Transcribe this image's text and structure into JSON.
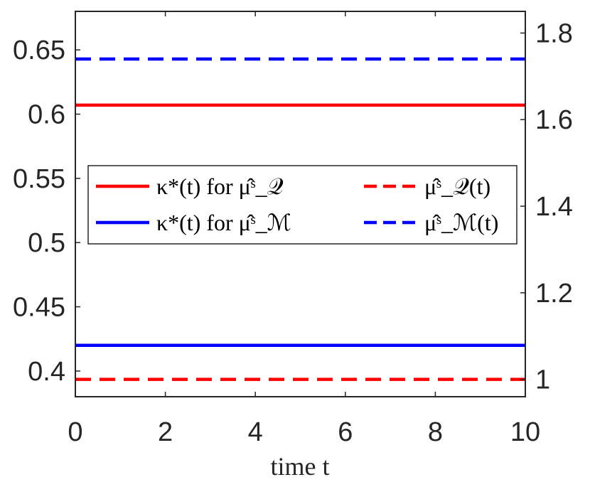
{
  "chart_data": {
    "type": "line",
    "xlabel": "time t",
    "xlim": [
      0,
      10
    ],
    "xticks": [
      0,
      2,
      4,
      6,
      8,
      10
    ],
    "xtick_labels": [
      "0",
      "2",
      "4",
      "6",
      "8",
      "10"
    ],
    "ylim_left": [
      0.38,
      0.68
    ],
    "yticks_left": [
      0.4,
      0.45,
      0.5,
      0.55,
      0.6,
      0.65
    ],
    "ytick_labels_left": [
      "0.4",
      "0.45",
      "0.5",
      "0.55",
      "0.6",
      "0.65"
    ],
    "ylim_right": [
      0.96,
      1.85
    ],
    "yticks_right": [
      1.0,
      1.2,
      1.4,
      1.6,
      1.8
    ],
    "ytick_labels_right": [
      "1",
      "1.2",
      "1.4",
      "1.6",
      "1.8"
    ],
    "grid": false,
    "legend_placement": "center-left",
    "series": [
      {
        "name": "κ*(t) for μ̂ˢ_𝒬",
        "axis": "left",
        "style": "solid",
        "color": "#ff0000",
        "x": [
          0,
          10
        ],
        "y": [
          0.607,
          0.607
        ]
      },
      {
        "name": "κ*(t) for μ̂ˢ_ℳ",
        "axis": "left",
        "style": "solid",
        "color": "#0000ff",
        "x": [
          0,
          10
        ],
        "y": [
          0.42,
          0.42
        ]
      },
      {
        "name": "μ̂ˢ_𝒬(t)",
        "axis": "right",
        "style": "dashed",
        "color": "#ff0000",
        "x": [
          0,
          10
        ],
        "y": [
          1.0,
          1.0
        ]
      },
      {
        "name": "μ̂ˢ_ℳ(t)",
        "axis": "right",
        "style": "dashed",
        "color": "#0000ff",
        "x": [
          0,
          10
        ],
        "y": [
          1.74,
          1.74
        ]
      }
    ]
  }
}
